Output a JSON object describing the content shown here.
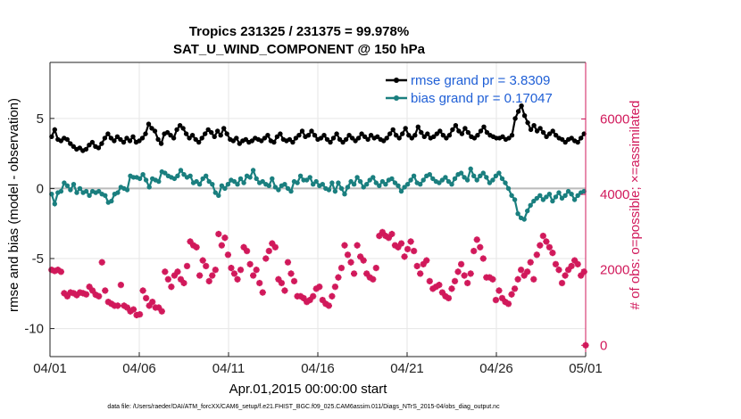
{
  "chart_data": {
    "type": "line",
    "title": "Tropics 231325 / 231375 = 99.978%",
    "subtitle": "SAT_U_WIND_COMPONENT @ 150 hPa",
    "xlabel": "Apr.01,2015 00:00:00 start",
    "ylabel_left": "rmse and bias (model - observation)",
    "ylabel_right": "# of obs: o=possible; ×=assimilated",
    "footnote": "data file: /Users/raeder/DAI/ATM_forcXX/CAM6_setup/f.e21.FHIST_BGC.f09_025.CAM6assim.011/Diags_NTrS_2015-04/obs_diag_output.nc",
    "x_ticks": [
      0,
      5,
      10,
      15,
      20,
      25,
      30
    ],
    "x_tick_labels": [
      "04/01",
      "04/06",
      "04/11",
      "04/16",
      "04/21",
      "04/26",
      "05/01"
    ],
    "xlim": [
      0,
      30
    ],
    "ylim_left": [
      -12,
      9
    ],
    "y_ticks_left": [
      -10,
      -5,
      0,
      5
    ],
    "ylim_right": [
      -300,
      7500
    ],
    "y_ticks_right": [
      0,
      2000,
      4000,
      6000
    ],
    "grid": true,
    "legend_position": "top-right",
    "colors": {
      "rmse": "#000000",
      "bias": "#1a7f7f",
      "obs": "#d1195b",
      "legend_text": "#1f5fd6",
      "right_axis": "#d1195b",
      "zero_line": "#bbbbbb",
      "grid": "#e6e6e6"
    },
    "series": [
      {
        "name": "rmse grand pr = 3.8309",
        "axis": "left",
        "values": [
          3.7,
          4.2,
          3.5,
          3.4,
          3.6,
          3.5,
          3.2,
          3.0,
          2.8,
          2.9,
          2.7,
          2.8,
          3.1,
          3.3,
          3.0,
          2.9,
          3.2,
          3.6,
          3.9,
          3.6,
          3.4,
          3.7,
          3.5,
          3.3,
          3.6,
          3.4,
          3.7,
          3.3,
          3.4,
          3.6,
          3.9,
          4.6,
          4.3,
          4.1,
          3.5,
          3.2,
          3.9,
          4.0,
          3.8,
          3.6,
          4.2,
          4.5,
          4.3,
          3.9,
          3.6,
          3.8,
          3.5,
          3.3,
          3.6,
          3.9,
          4.2,
          4.0,
          3.7,
          4.1,
          3.8,
          4.3,
          3.9,
          3.5,
          3.4,
          3.6,
          3.2,
          3.4,
          3.5,
          3.3,
          3.4,
          3.6,
          3.5,
          3.4,
          3.6,
          3.8,
          3.4,
          3.3,
          3.7,
          3.9,
          3.5,
          3.4,
          3.5,
          3.3,
          3.6,
          3.8,
          4.1,
          3.7,
          3.8,
          4.1,
          3.8,
          3.5,
          3.6,
          3.8,
          3.5,
          3.3,
          3.6,
          3.9,
          3.5,
          3.3,
          3.5,
          3.8,
          3.6,
          3.4,
          3.6,
          3.9,
          3.7,
          3.5,
          3.8,
          3.6,
          3.7,
          3.5,
          3.4,
          3.6,
          3.9,
          4.2,
          3.8,
          3.6,
          3.9,
          4.3,
          3.8,
          3.6,
          3.8,
          4.4,
          4.0,
          3.7,
          3.9,
          3.6,
          3.7,
          3.9,
          4.1,
          3.8,
          3.6,
          3.8,
          4.2,
          4.5,
          4.1,
          3.9,
          4.3,
          4.0,
          3.7,
          3.6,
          3.8,
          4.1,
          4.4,
          4.0,
          3.8,
          3.7,
          3.6,
          3.6,
          3.7,
          3.5,
          3.6,
          3.8,
          5.0,
          5.5,
          5.9,
          5.2,
          4.7,
          4.2,
          4.5,
          4.1,
          4.3,
          4.0,
          3.7,
          3.9,
          4.1,
          3.8,
          3.6,
          3.5,
          3.3,
          3.5,
          3.6,
          3.4,
          3.3,
          3.6,
          3.9
        ]
      },
      {
        "name": "bias grand pr = 0.17047",
        "axis": "left",
        "values": [
          -0.4,
          -1.1,
          -0.3,
          -0.2,
          0.4,
          0.2,
          -0.1,
          0.3,
          -0.3,
          0.0,
          -0.3,
          -0.2,
          -0.5,
          -0.2,
          -0.3,
          -0.2,
          -0.4,
          -0.5,
          -1.0,
          -0.9,
          -0.4,
          -0.3,
          0.1,
          0.0,
          -0.1,
          0.9,
          0.8,
          0.8,
          0.7,
          1.0,
          0.6,
          0.1,
          0.7,
          0.6,
          0.5,
          1.2,
          1.1,
          0.9,
          0.8,
          0.7,
          0.9,
          1.3,
          1.0,
          0.8,
          0.9,
          0.4,
          0.5,
          0.3,
          0.7,
          0.9,
          0.5,
          0.3,
          -0.3,
          -0.5,
          0.2,
          0.0,
          0.3,
          0.6,
          0.5,
          0.3,
          0.7,
          0.4,
          0.9,
          0.8,
          1.3,
          0.7,
          0.4,
          0.5,
          0.3,
          0.2,
          0.7,
          0.1,
          -0.1,
          0.2,
          0.3,
          0.0,
          -0.2,
          0.5,
          0.4,
          0.9,
          0.6,
          0.6,
          0.8,
          0.3,
          0.5,
          0.2,
          0.3,
          0.0,
          -0.1,
          0.4,
          -0.2,
          0.4,
          0.0,
          -0.4,
          0.1,
          0.5,
          0.3,
          0.8,
          0.5,
          0.1,
          0.3,
          0.6,
          0.8,
          0.4,
          0.2,
          0.5,
          0.3,
          0.6,
          0.7,
          0.4,
          0.2,
          -0.2,
          0.1,
          0.3,
          0.6,
          0.9,
          0.4,
          0.3,
          0.6,
          0.9,
          1.0,
          0.7,
          0.5,
          0.4,
          0.6,
          0.8,
          0.5,
          0.3,
          0.7,
          1.0,
          1.1,
          0.8,
          0.6,
          1.4,
          0.9,
          0.6,
          0.9,
          1.1,
          0.8,
          0.4,
          0.6,
          0.9,
          1.1,
          0.7,
          0.4,
          0.0,
          -0.5,
          -0.8,
          -1.8,
          -2.1,
          -2.2,
          -1.6,
          -1.2,
          -0.9,
          -0.7,
          -0.5,
          -0.8,
          -0.6,
          -0.4,
          -0.9,
          -0.6,
          -0.3,
          -0.7,
          -0.5,
          -0.2,
          -0.4,
          -0.8,
          -0.5,
          -0.3,
          -0.2
        ]
      },
      {
        "name": "# of obs assimilated",
        "axis": "right",
        "values": [
          2000,
          1970,
          2000,
          1950,
          1380,
          1300,
          1400,
          1380,
          1330,
          1400,
          1380,
          1350,
          1550,
          1450,
          1340,
          1300,
          2200,
          1450,
          1150,
          1100,
          1050,
          1050,
          1600,
          1050,
          1000,
          900,
          950,
          800,
          820,
          1450,
          1250,
          1050,
          1150,
          1000,
          1000,
          900,
          1950,
          1750,
          1550,
          1850,
          1950,
          1750,
          1650,
          2100,
          2750,
          2650,
          2600,
          1850,
          2250,
          2100,
          1700,
          1850,
          2000,
          2950,
          2650,
          2850,
          2400,
          2050,
          1900,
          1750,
          2000,
          2600,
          2500,
          2150,
          1850,
          2000,
          1650,
          1400,
          2300,
          2500,
          2700,
          2600,
          1750,
          1650,
          1450,
          2200,
          1900,
          1700,
          1300,
          1300,
          1250,
          1150,
          1200,
          1300,
          1500,
          1550,
          1200,
          1100,
          1050,
          1300,
          1550,
          1800,
          2050,
          2650,
          2400,
          2200,
          1900,
          2650,
          2350,
          2250,
          1900,
          1800,
          1750,
          2050,
          2900,
          3000,
          2900,
          2850,
          2950,
          2650,
          2600,
          2700,
          2350,
          2550,
          2750,
          2500,
          2100,
          1900,
          2150,
          2250,
          1700,
          1500,
          1550,
          1600,
          1400,
          1300,
          1250,
          1500,
          1700,
          1950,
          2150,
          1850,
          1650,
          1900,
          2500,
          2800,
          2600,
          2300,
          1800,
          1800,
          1750,
          1200,
          1450,
          1250,
          1150,
          1100,
          1350,
          1500,
          1750,
          2000,
          1850,
          1950,
          2200,
          1750,
          2400,
          2650,
          2900,
          2750,
          2600,
          2450,
          2150,
          2000,
          1650,
          1850,
          2000,
          2100,
          2250,
          2150,
          1850,
          1950
        ]
      }
    ],
    "special_points": [
      {
        "x": 30,
        "value": 0,
        "axis": "right"
      }
    ]
  }
}
